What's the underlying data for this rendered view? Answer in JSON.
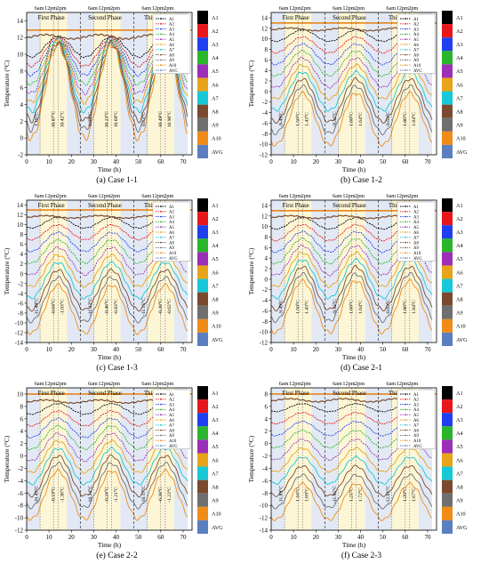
{
  "figure": {
    "shared": {
      "xlabel": "Time (h)",
      "ylabel": "Temperature (°C)",
      "x_ticks": [
        0,
        10,
        20,
        30,
        40,
        50,
        60,
        70
      ],
      "xlim": [
        0,
        74
      ],
      "phases": [
        "First Phase",
        "Second Phase",
        "Third Phase"
      ],
      "phase_bounds": [
        0,
        24,
        48,
        72
      ],
      "time_marks": [
        "6am",
        "12pm",
        "2pm"
      ],
      "time_mark_hours": [
        6,
        12,
        14
      ],
      "legend_entries": [
        "A1",
        "A2",
        "A3",
        "A4",
        "A5",
        "A6",
        "A7",
        "A8",
        "A9",
        "A10",
        "AVG"
      ],
      "colorbar_labels": [
        "A1",
        "A2",
        "A3",
        "A4",
        "A5",
        "A6",
        "A7",
        "A8",
        "A9",
        "A10",
        "AVG"
      ],
      "colors": [
        "#000000",
        "#e8161b",
        "#1f3ff0",
        "#2bb52a",
        "#9b2fb8",
        "#e7a418",
        "#16c8d8",
        "#7b4a2e",
        "#6f6f6f",
        "#f08b18",
        "#5a7fc0"
      ],
      "shade_colors": {
        "night": "#e2e9f4",
        "day": "#fdf6d6"
      },
      "top_line_color": "#e8841a"
    }
  },
  "chart_data": [
    {
      "type": "line",
      "caption": "(a) Case 1-1",
      "ylim": [
        -2,
        15
      ],
      "y_ticks": [
        -2,
        0,
        2,
        4,
        6,
        8,
        10,
        12,
        14
      ],
      "top": 12.9,
      "second": 12.1,
      "amp": 11.2,
      "decay": 0.7,
      "annotations": [
        "1.16°C",
        "10.07°C",
        "10.42°C",
        "0.89°C",
        "10.23°C",
        "10.69°C",
        "0.63°C",
        "10.49°C",
        "10.90°C"
      ]
    },
    {
      "type": "line",
      "caption": "(b) Case 1-2",
      "ylim": [
        -12,
        15
      ],
      "y_ticks": [
        -12,
        -10,
        -8,
        -6,
        -4,
        -2,
        0,
        2,
        4,
        6,
        8,
        10,
        12,
        14
      ],
      "top": 13.0,
      "second": 11.8,
      "amp": 9.8,
      "decay": 1.1,
      "annotations": [
        "-9.49°C",
        "1.50°C",
        "1.43°C",
        "-9.32°C",
        "1.68°C",
        "1.64°C",
        "-0.63°C",
        "1.86°C",
        "1.84°C"
      ]
    },
    {
      "type": "line",
      "caption": "(c) Case 1-3",
      "ylim": [
        -14,
        15
      ],
      "y_ticks": [
        -14,
        -12,
        -10,
        -8,
        -6,
        -4,
        -2,
        0,
        2,
        4,
        6,
        8,
        10,
        12,
        14
      ],
      "top": 13.0,
      "second": 11.6,
      "amp": 9.8,
      "decay": 1.4,
      "annotations": [
        "-11.49°C",
        "-0.64°C",
        "-1.03°C",
        "-11.33°C",
        "-0.46°C",
        "-0.83°C",
        "-11.15°C",
        "-0.28°C",
        "-0.62°C"
      ]
    },
    {
      "type": "line",
      "caption": "(d) Case 2-1",
      "ylim": [
        -12,
        15
      ],
      "y_ticks": [
        -12,
        -10,
        -8,
        -6,
        -4,
        -2,
        0,
        2,
        4,
        6,
        8,
        10,
        12,
        14
      ],
      "top": 13.0,
      "second": 11.8,
      "amp": 9.8,
      "decay": 1.1,
      "annotations": [
        "-9.49°C",
        "1.50°C",
        "1.43°C",
        "-9.32°C",
        "1.68°C",
        "1.64°C",
        "-0.63°C",
        "1.86°C",
        "1.84°C"
      ]
    },
    {
      "type": "line",
      "caption": "(e) Case 2-2",
      "ylim": [
        -12,
        11
      ],
      "y_ticks": [
        -12,
        -10,
        -8,
        -6,
        -4,
        -2,
        0,
        2,
        4,
        6,
        8,
        10
      ],
      "top": 10.0,
      "second": 8.8,
      "amp": 7.8,
      "decay": 1.2,
      "annotations": [
        "-10.45°C",
        "-0.19°C",
        "-1.38°C",
        "-10.24°C",
        "-0.24°C",
        "-1.21°C",
        "-10.17°C",
        "-0.28°C",
        "-1.23°C"
      ]
    },
    {
      "type": "line",
      "caption": "(f) Case 2-3",
      "ylim": [
        -14,
        9
      ],
      "y_ticks": [
        -14,
        -12,
        -10,
        -8,
        -6,
        -4,
        -2,
        0,
        2,
        4,
        6,
        8
      ],
      "top": 8.0,
      "second": 7.0,
      "amp": 5.8,
      "decay": 1.3,
      "annotations": [
        "-11.89°C",
        "1.16°C",
        "1.69°C",
        "-11.95°C",
        "1.21°C",
        "1.72°C",
        "-12.01°C",
        "1.20°C",
        "1.67°C"
      ]
    }
  ]
}
